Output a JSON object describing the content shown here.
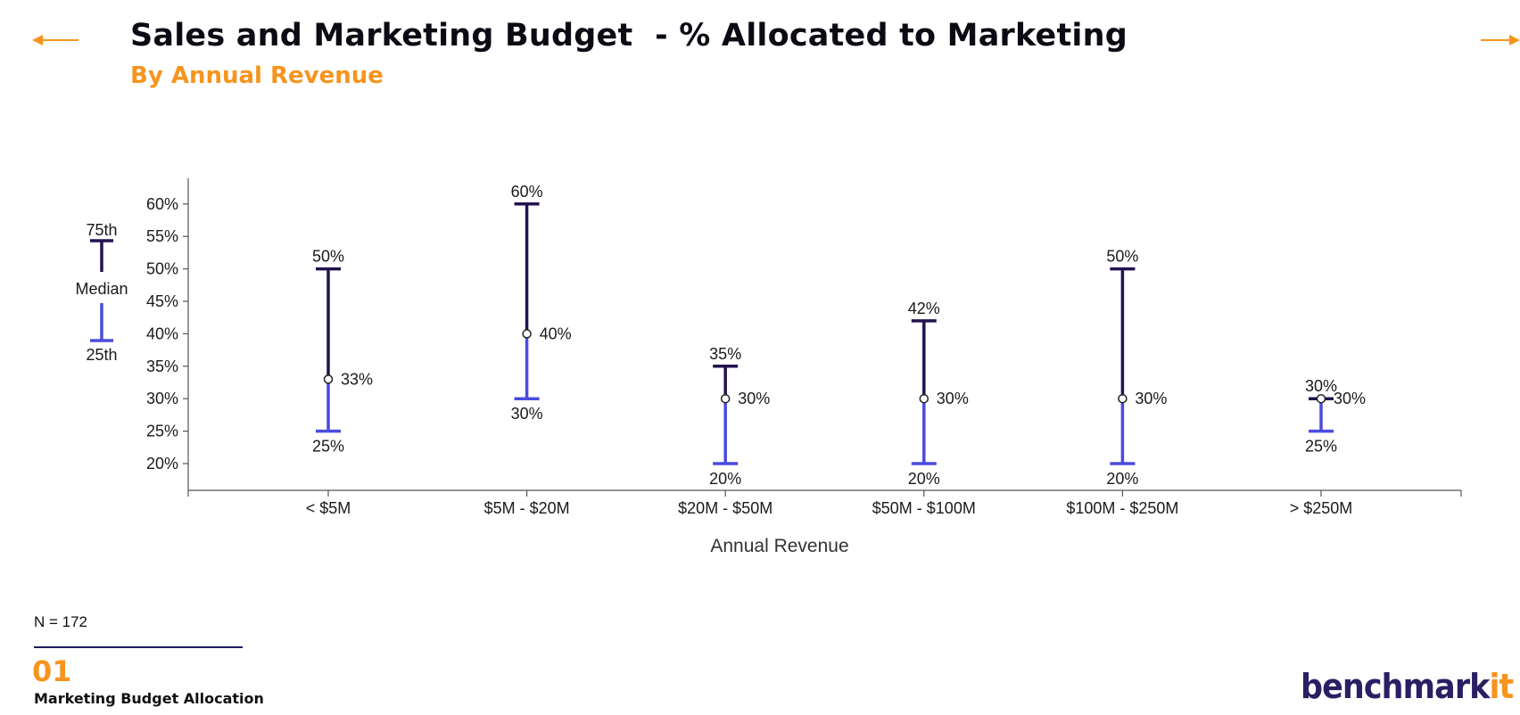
{
  "header": {
    "title": "Sales and Marketing Budget  - % Allocated to Marketing",
    "subtitle": "By Annual Revenue"
  },
  "colors": {
    "accent": "#f7941d",
    "upper_whisker": "#24124f",
    "lower_whisker": "#4b4be0",
    "logo": "#2a1f63"
  },
  "nav": {
    "prev_icon": "arrow-left-icon",
    "next_icon": "arrow-right-icon"
  },
  "chart_data": {
    "type": "range",
    "xlabel": "Annual Revenue",
    "ylabel": "",
    "ylim": [
      16,
      64
    ],
    "yticks": [
      20,
      25,
      30,
      35,
      40,
      45,
      50,
      55,
      60
    ],
    "ytick_labels": [
      "20%",
      "25%",
      "30%",
      "35%",
      "40%",
      "45%",
      "50%",
      "55%",
      "60%"
    ],
    "categories": [
      "< $5M",
      "$5M - $20M",
      "$20M - $50M",
      "$50M - $100M",
      "$100M - $250M",
      "> $250M"
    ],
    "p25": [
      25,
      30,
      20,
      20,
      20,
      25
    ],
    "median": [
      33,
      40,
      30,
      30,
      30,
      30
    ],
    "p75": [
      50,
      60,
      35,
      42,
      50,
      30
    ],
    "p25_labels": [
      "25%",
      "30%",
      "20%",
      "20%",
      "20%",
      "25%"
    ],
    "median_labels": [
      "33%",
      "40%",
      "30%",
      "30%",
      "30%",
      "30%"
    ],
    "p75_labels": [
      "50%",
      "60%",
      "35%",
      "42%",
      "50%",
      "30%"
    ],
    "legend": {
      "top": "75th",
      "middle": "Median",
      "bottom": "25th"
    },
    "grid": false
  },
  "footer": {
    "sample_size": "N = 172",
    "section_number": "01",
    "section_name": "Marketing Budget Allocation"
  },
  "logo": {
    "text_main": "benchmark",
    "text_accent": "it"
  }
}
